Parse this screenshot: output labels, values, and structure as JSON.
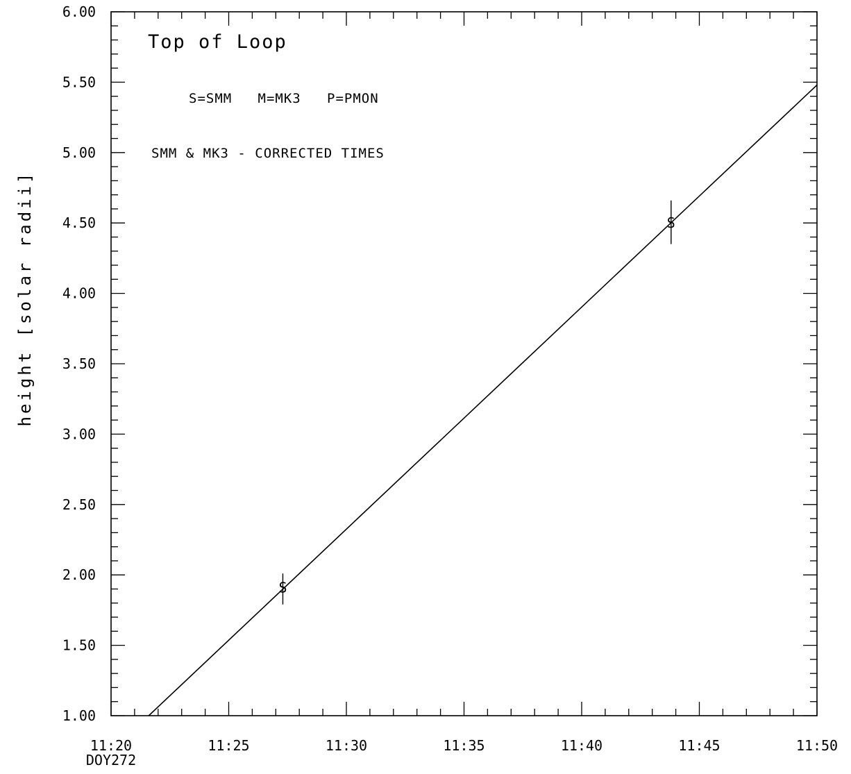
{
  "chart_data": {
    "type": "scatter",
    "title": "",
    "xlabel": "",
    "ylabel": "height [solar radii]",
    "xlim": [
      20,
      50
    ],
    "ylim": [
      1.0,
      6.0
    ],
    "x_tick_labels": [
      "11:20",
      "11:25",
      "11:30",
      "11:35",
      "11:40",
      "11:45",
      "11:50"
    ],
    "x_tick_values": [
      20,
      25,
      30,
      35,
      40,
      45,
      50
    ],
    "x_sublabel": "DOY272",
    "y_tick_labels": [
      "1.00",
      "1.50",
      "2.00",
      "2.50",
      "3.00",
      "3.50",
      "4.00",
      "4.50",
      "5.00",
      "5.50",
      "6.00"
    ],
    "y_tick_values": [
      1.0,
      1.5,
      2.0,
      2.5,
      3.0,
      3.5,
      4.0,
      4.5,
      5.0,
      5.5,
      6.0
    ],
    "annotations": [
      "Top of Loop",
      "S=SMM   M=MK3   P=PMON",
      "SMM & MK3 - CORRECTED TIMES"
    ],
    "points": [
      {
        "x": 27.3,
        "y": 1.91,
        "err_low": 1.79,
        "err_high": 2.01,
        "marker": "S"
      },
      {
        "x": 43.8,
        "y": 4.5,
        "err_low": 4.35,
        "err_high": 4.66,
        "marker": "S"
      }
    ],
    "fit_line": {
      "x_start": 21.6,
      "y_start": 1.0,
      "x_end": 50.0,
      "y_end": 5.48
    },
    "grid": false,
    "color": "#000000"
  }
}
